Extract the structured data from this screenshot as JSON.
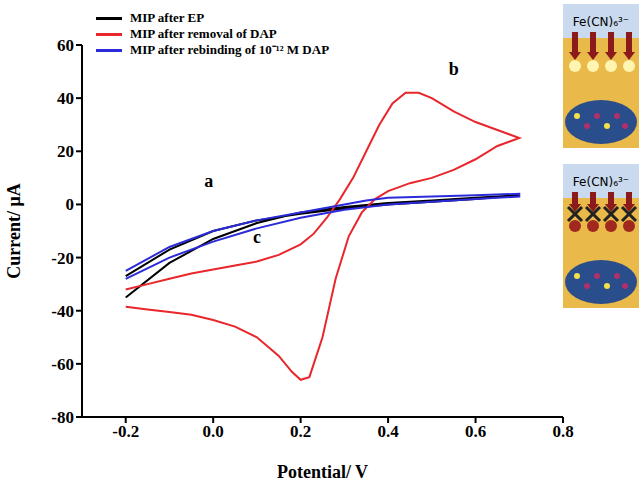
{
  "chart_data": {
    "type": "line",
    "x_label": "Potential/ V",
    "y_label": "Current/ μA",
    "xlim": [
      -0.3,
      0.8
    ],
    "xticks": [
      -0.2,
      {
        "value": 0,
        "label": "0.0"
      },
      0.2,
      0.4,
      0.6,
      0.8
    ],
    "ylim": [
      -80,
      60
    ],
    "yticks": [
      -80,
      -60,
      -40,
      -20,
      0,
      20,
      40,
      60
    ],
    "legend": "upper left",
    "series": [
      {
        "name": "MIP after EP",
        "color": "#000000",
        "x": [
          -0.2,
          -0.1,
          0,
          0.1,
          0.2,
          0.3,
          0.4,
          0.5,
          0.6,
          0.7,
          0.7,
          0.6,
          0.5,
          0.4,
          0.3,
          0.2,
          0.1,
          0,
          -0.1,
          -0.2
        ],
        "values": [
          -35,
          -22,
          -13,
          -7,
          -3,
          -1,
          0.5,
          1.5,
          2.5,
          3.5,
          3.5,
          2,
          1,
          0,
          -1.5,
          -3.5,
          -6,
          -10,
          -17,
          -27
        ]
      },
      {
        "name": "MIP after removal of DAP",
        "color": "#e8262b",
        "x": [
          -0.2,
          -0.15,
          -0.1,
          -0.05,
          0,
          0.05,
          0.1,
          0.15,
          0.2,
          0.23,
          0.26,
          0.29,
          0.32,
          0.35,
          0.38,
          0.41,
          0.44,
          0.47,
          0.5,
          0.55,
          0.6,
          0.65,
          0.7,
          0.65,
          0.6,
          0.55,
          0.5,
          0.45,
          0.4,
          0.37,
          0.34,
          0.31,
          0.28,
          0.25,
          0.22,
          0.2,
          0.18,
          0.15,
          0.1,
          0.05,
          0,
          -0.05,
          -0.1,
          -0.15,
          -0.2
        ],
        "values": [
          -32,
          -30,
          -28,
          -26,
          -24.5,
          -23,
          -21.5,
          -19,
          -15,
          -11,
          -5,
          2,
          10,
          20,
          30,
          38,
          42,
          42,
          40,
          35,
          31,
          28,
          25,
          22,
          17,
          13,
          10,
          8,
          5,
          2,
          -3,
          -12,
          -28,
          -50,
          -65,
          -66,
          -63,
          -57,
          -50,
          -46,
          -43.5,
          -41.5,
          -40.5,
          -39.5,
          -38.5
        ]
      },
      {
        "name": "MIP after rebinding of 10⁻¹² M DAP",
        "color": "#2b2bd9",
        "x": [
          -0.2,
          -0.1,
          0,
          0.1,
          0.2,
          0.3,
          0.4,
          0.5,
          0.6,
          0.7,
          0.7,
          0.6,
          0.5,
          0.4,
          0.35,
          0.3,
          0.2,
          0.1,
          0,
          -0.1,
          -0.2
        ],
        "values": [
          -28,
          -20,
          -14,
          -9,
          -5,
          -2,
          0,
          1,
          2,
          3,
          4,
          3.5,
          3,
          2.5,
          1.5,
          0,
          -3,
          -6,
          -10,
          -16,
          -25
        ]
      }
    ],
    "annotations": [
      {
        "text": "a",
        "x": -0.01,
        "y": 9
      },
      {
        "text": "b",
        "x": 0.55,
        "y": 51
      },
      {
        "text": "c",
        "x": 0.1,
        "y": -12
      }
    ],
    "inset_labels": [
      "Fe(CN)₆³⁻",
      "Fe(CN)₆³⁻"
    ]
  }
}
